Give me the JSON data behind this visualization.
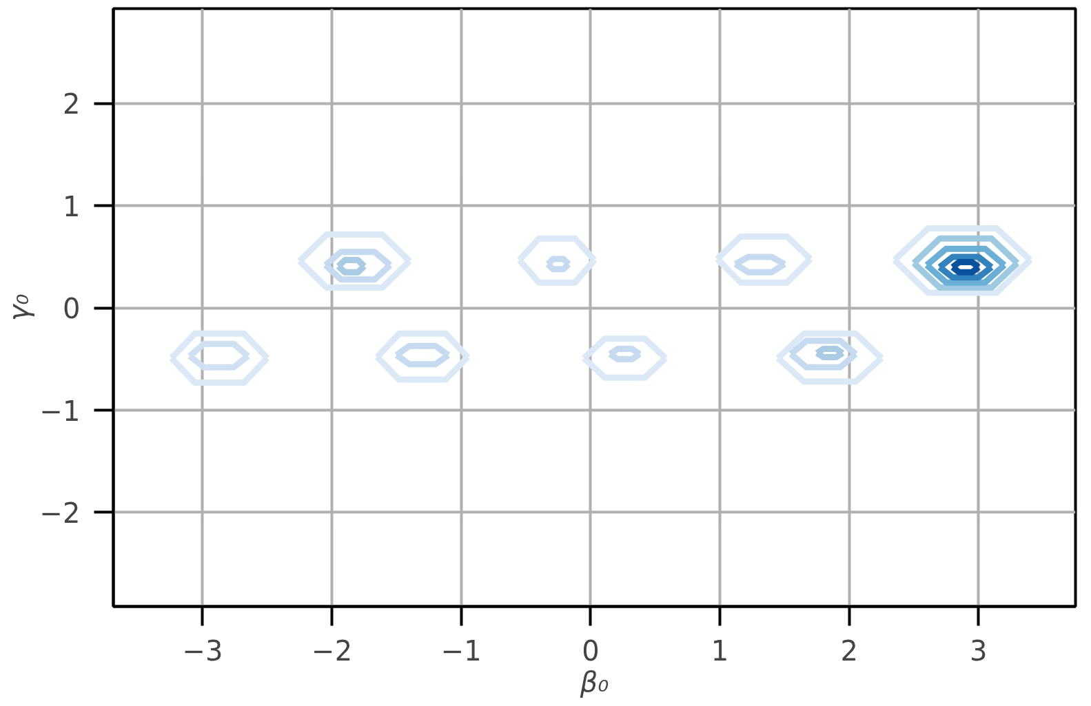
{
  "chart_data": {
    "type": "line",
    "xlabel": "β₀",
    "ylabel": "γ₀",
    "xlim": [
      -3.69,
      3.75
    ],
    "ylim": [
      -2.92,
      2.93
    ],
    "xticks": [
      {
        "value": -3,
        "label": "−3"
      },
      {
        "value": -2,
        "label": "−2"
      },
      {
        "value": -1,
        "label": "−1"
      },
      0,
      1,
      2,
      3
    ],
    "yticks": [
      {
        "value": -2,
        "label": "−2"
      },
      {
        "value": -1,
        "label": "−1"
      },
      0,
      1,
      2
    ],
    "grid": true,
    "marker": "none",
    "line_style": "solid",
    "series": [
      {
        "color": "#dbe9f6",
        "x": [
          -3.24,
          -3.06,
          -2.68,
          -2.5
        ],
        "values": [
          -0.49,
          -0.25,
          -0.25,
          -0.49
        ]
      },
      {
        "color": "#dbe9f6",
        "x": [
          -3.24,
          -3.06,
          -2.68,
          -2.5
        ],
        "values": [
          -0.49,
          -0.73,
          -0.73,
          -0.49
        ]
      },
      {
        "color": "#d0e2f2",
        "x": [
          -3.1,
          -2.99,
          -2.76,
          -2.65
        ],
        "values": [
          -0.47,
          -0.35,
          -0.35,
          -0.47
        ]
      },
      {
        "color": "#d0e2f2",
        "x": [
          -3.1,
          -2.99,
          -2.76,
          -2.65
        ],
        "values": [
          -0.47,
          -0.58,
          -0.58,
          -0.47
        ]
      },
      {
        "color": "#dbe9f6",
        "x": [
          -2.25,
          -2.04,
          -1.61,
          -1.4
        ],
        "values": [
          0.46,
          0.72,
          0.72,
          0.46
        ]
      },
      {
        "color": "#dbe9f6",
        "x": [
          -2.25,
          -2.04,
          -1.61,
          -1.4
        ],
        "values": [
          0.46,
          0.2,
          0.2,
          0.46
        ]
      },
      {
        "color": "#c6dbef",
        "x": [
          -2.05,
          -1.93,
          -1.67,
          -1.55
        ],
        "values": [
          0.42,
          0.55,
          0.55,
          0.42
        ]
      },
      {
        "color": "#c6dbef",
        "x": [
          -2.05,
          -1.93,
          -1.67,
          -1.55
        ],
        "values": [
          0.42,
          0.28,
          0.28,
          0.42
        ]
      },
      {
        "color": "#a9cce4",
        "x": [
          -1.95,
          -1.9,
          -1.8,
          -1.75
        ],
        "values": [
          0.41,
          0.47,
          0.47,
          0.41
        ]
      },
      {
        "color": "#a9cce4",
        "x": [
          -1.95,
          -1.9,
          -1.8,
          -1.75
        ],
        "values": [
          0.41,
          0.35,
          0.35,
          0.41
        ]
      },
      {
        "color": "#dbe9f6",
        "x": [
          -1.65,
          -1.48,
          -1.12,
          -0.95
        ],
        "values": [
          -0.48,
          -0.25,
          -0.25,
          -0.48
        ]
      },
      {
        "color": "#dbe9f6",
        "x": [
          -1.65,
          -1.48,
          -1.12,
          -0.95
        ],
        "values": [
          -0.48,
          -0.7,
          -0.7,
          -0.48
        ]
      },
      {
        "color": "#c6dbef",
        "x": [
          -1.5,
          -1.4,
          -1.2,
          -1.1
        ],
        "values": [
          -0.46,
          -0.37,
          -0.37,
          -0.46
        ]
      },
      {
        "color": "#c6dbef",
        "x": [
          -1.5,
          -1.4,
          -1.2,
          -1.1
        ],
        "values": [
          -0.46,
          -0.55,
          -0.55,
          -0.46
        ]
      },
      {
        "color": "#dbe9f6",
        "x": [
          -0.55,
          -0.4,
          -0.12,
          0.03
        ],
        "values": [
          0.47,
          0.68,
          0.68,
          0.47
        ]
      },
      {
        "color": "#dbe9f6",
        "x": [
          -0.55,
          -0.4,
          -0.12,
          0.03
        ],
        "values": [
          0.47,
          0.25,
          0.25,
          0.47
        ]
      },
      {
        "color": "#c6dbef",
        "x": [
          -0.33,
          -0.29,
          -0.21,
          -0.17
        ],
        "values": [
          0.43,
          0.48,
          0.48,
          0.43
        ]
      },
      {
        "color": "#c6dbef",
        "x": [
          -0.33,
          -0.29,
          -0.21,
          -0.17
        ],
        "values": [
          0.43,
          0.38,
          0.38,
          0.43
        ]
      },
      {
        "color": "#dbe9f6",
        "x": [
          -0.05,
          0.11,
          0.42,
          0.58
        ],
        "values": [
          -0.49,
          -0.3,
          -0.3,
          -0.49
        ]
      },
      {
        "color": "#dbe9f6",
        "x": [
          -0.05,
          0.11,
          0.42,
          0.58
        ],
        "values": [
          -0.49,
          -0.68,
          -0.68,
          -0.49
        ]
      },
      {
        "color": "#c6dbef",
        "x": [
          0.15,
          0.21,
          0.32,
          0.38
        ],
        "values": [
          -0.45,
          -0.4,
          -0.4,
          -0.45
        ]
      },
      {
        "color": "#c6dbef",
        "x": [
          0.15,
          0.21,
          0.32,
          0.38
        ],
        "values": [
          -0.45,
          -0.5,
          -0.5,
          -0.45
        ]
      },
      {
        "color": "#dbe9f6",
        "x": [
          0.98,
          1.16,
          1.52,
          1.7
        ],
        "values": [
          0.48,
          0.7,
          0.7,
          0.48
        ]
      },
      {
        "color": "#dbe9f6",
        "x": [
          0.98,
          1.16,
          1.52,
          1.7
        ],
        "values": [
          0.48,
          0.25,
          0.25,
          0.48
        ]
      },
      {
        "color": "#c6dbef",
        "x": [
          1.12,
          1.22,
          1.4,
          1.5
        ],
        "values": [
          0.43,
          0.5,
          0.5,
          0.43
        ]
      },
      {
        "color": "#c6dbef",
        "x": [
          1.12,
          1.22,
          1.4,
          1.5
        ],
        "values": [
          0.43,
          0.35,
          0.35,
          0.43
        ]
      },
      {
        "color": "#dbe9f6",
        "x": [
          1.45,
          1.65,
          2.05,
          2.25
        ],
        "values": [
          -0.49,
          -0.25,
          -0.25,
          -0.49
        ]
      },
      {
        "color": "#dbe9f6",
        "x": [
          1.45,
          1.65,
          2.05,
          2.25
        ],
        "values": [
          -0.49,
          -0.72,
          -0.72,
          -0.49
        ]
      },
      {
        "color": "#c6dbef",
        "x": [
          1.55,
          1.67,
          1.93,
          2.05
        ],
        "values": [
          -0.45,
          -0.32,
          -0.32,
          -0.45
        ]
      },
      {
        "color": "#c6dbef",
        "x": [
          1.55,
          1.67,
          1.93,
          2.05
        ],
        "values": [
          -0.45,
          -0.58,
          -0.58,
          -0.45
        ]
      },
      {
        "color": "#a9cce4",
        "x": [
          1.75,
          1.8,
          1.9,
          1.95
        ],
        "values": [
          -0.44,
          -0.4,
          -0.4,
          -0.44
        ]
      },
      {
        "color": "#a9cce4",
        "x": [
          1.75,
          1.8,
          1.9,
          1.95
        ],
        "values": [
          -0.44,
          -0.48,
          -0.48,
          -0.44
        ]
      },
      {
        "color": "#dbe9f6",
        "x": [
          2.35,
          2.61,
          3.14,
          3.4
        ],
        "values": [
          0.47,
          0.78,
          0.78,
          0.47
        ]
      },
      {
        "color": "#dbe9f6",
        "x": [
          2.35,
          2.61,
          3.14,
          3.4
        ],
        "values": [
          0.47,
          0.15,
          0.15,
          0.47
        ]
      },
      {
        "color": "#9ecae1",
        "x": [
          2.5,
          2.7,
          3.1,
          3.3
        ],
        "values": [
          0.44,
          0.68,
          0.68,
          0.44
        ]
      },
      {
        "color": "#9ecae1",
        "x": [
          2.5,
          2.7,
          3.1,
          3.3
        ],
        "values": [
          0.44,
          0.2,
          0.2,
          0.44
        ]
      },
      {
        "color": "#6baed6",
        "x": [
          2.6,
          2.75,
          3.05,
          3.2
        ],
        "values": [
          0.42,
          0.58,
          0.58,
          0.42
        ]
      },
      {
        "color": "#6baed6",
        "x": [
          2.6,
          2.75,
          3.05,
          3.2
        ],
        "values": [
          0.42,
          0.25,
          0.25,
          0.42
        ]
      },
      {
        "color": "#3182bd",
        "x": [
          2.7,
          2.8,
          3.0,
          3.1
        ],
        "values": [
          0.4,
          0.5,
          0.5,
          0.4
        ]
      },
      {
        "color": "#3182bd",
        "x": [
          2.7,
          2.8,
          3.0,
          3.1
        ],
        "values": [
          0.4,
          0.3,
          0.3,
          0.4
        ]
      },
      {
        "color": "#08519c",
        "x": [
          2.8,
          2.85,
          2.95,
          3.0
        ],
        "values": [
          0.4,
          0.45,
          0.45,
          0.4
        ]
      },
      {
        "color": "#08519c",
        "x": [
          2.8,
          2.85,
          2.95,
          3.0
        ],
        "values": [
          0.4,
          0.35,
          0.35,
          0.4
        ]
      }
    ]
  }
}
